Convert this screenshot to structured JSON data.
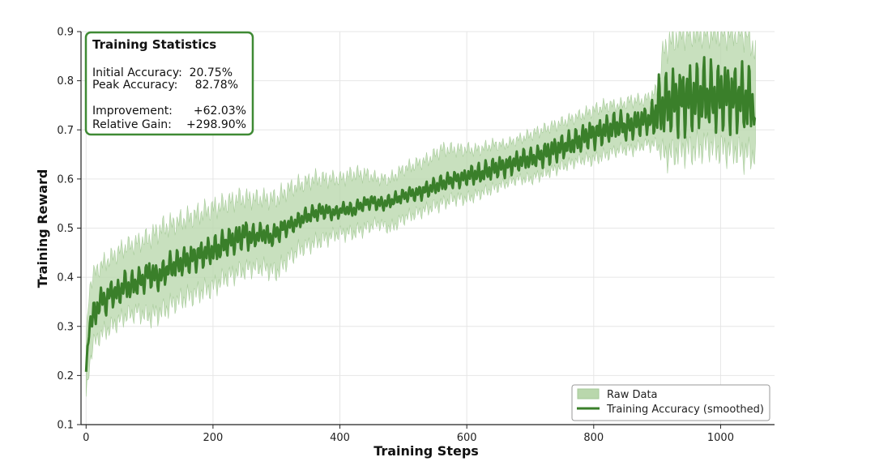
{
  "chart_data": {
    "type": "line",
    "xlabel": "Training Steps",
    "ylabel": "Training Reward",
    "xlim": [
      -8,
      1085
    ],
    "ylim": [
      0.1,
      0.9
    ],
    "xticks": [
      0,
      200,
      400,
      600,
      800,
      1000
    ],
    "yticks": [
      0.1,
      0.2,
      0.3,
      0.4,
      0.5,
      0.6,
      0.7,
      0.8,
      0.9
    ],
    "xtick_labels": [
      "0",
      "200",
      "400",
      "600",
      "800",
      "1000"
    ],
    "ytick_labels": [
      "0.1",
      "0.2",
      "0.3",
      "0.4",
      "0.5",
      "0.6",
      "0.7",
      "0.8",
      "0.9"
    ],
    "grid": true,
    "legend": {
      "position": "bottom-right",
      "entries": [
        "Raw Data",
        "Training Accuracy (smoothed)"
      ]
    },
    "series": [
      {
        "name": "Training Accuracy (smoothed)",
        "color": "#3a7f2a",
        "x": [
          0,
          5,
          10,
          15,
          20,
          30,
          40,
          50,
          60,
          70,
          80,
          90,
          100,
          110,
          120,
          130,
          140,
          150,
          160,
          170,
          180,
          190,
          200,
          210,
          220,
          230,
          240,
          250,
          260,
          270,
          280,
          290,
          300,
          310,
          320,
          330,
          340,
          350,
          360,
          370,
          380,
          390,
          400,
          410,
          420,
          430,
          440,
          450,
          460,
          470,
          480,
          490,
          500,
          510,
          520,
          530,
          540,
          550,
          560,
          570,
          580,
          590,
          600,
          610,
          620,
          630,
          640,
          650,
          660,
          670,
          680,
          690,
          700,
          710,
          720,
          730,
          740,
          750,
          760,
          770,
          780,
          790,
          800,
          810,
          820,
          830,
          840,
          850,
          860,
          870,
          880,
          890,
          900,
          910,
          920,
          930,
          940,
          950,
          960,
          970,
          980,
          990,
          1000,
          1010,
          1020,
          1030,
          1040,
          1050,
          1055
        ],
        "values": [
          0.2075,
          0.3,
          0.33,
          0.315,
          0.355,
          0.35,
          0.37,
          0.365,
          0.385,
          0.38,
          0.39,
          0.395,
          0.41,
          0.4,
          0.405,
          0.42,
          0.425,
          0.43,
          0.435,
          0.44,
          0.445,
          0.45,
          0.455,
          0.46,
          0.47,
          0.475,
          0.48,
          0.49,
          0.48,
          0.485,
          0.49,
          0.48,
          0.49,
          0.5,
          0.505,
          0.51,
          0.52,
          0.525,
          0.53,
          0.535,
          0.535,
          0.53,
          0.535,
          0.54,
          0.535,
          0.545,
          0.55,
          0.555,
          0.55,
          0.55,
          0.555,
          0.56,
          0.565,
          0.57,
          0.57,
          0.575,
          0.58,
          0.585,
          0.59,
          0.595,
          0.6,
          0.6,
          0.605,
          0.61,
          0.61,
          0.615,
          0.62,
          0.625,
          0.625,
          0.63,
          0.635,
          0.64,
          0.64,
          0.645,
          0.65,
          0.655,
          0.66,
          0.665,
          0.67,
          0.675,
          0.68,
          0.69,
          0.69,
          0.695,
          0.7,
          0.705,
          0.71,
          0.705,
          0.71,
          0.715,
          0.72,
          0.72,
          0.74,
          0.75,
          0.755,
          0.76,
          0.76,
          0.765,
          0.765,
          0.77,
          0.77,
          0.765,
          0.77,
          0.77,
          0.765,
          0.765,
          0.76,
          0.755,
          0.725
        ],
        "amplitude": [
          0.0,
          0.02,
          0.02,
          0.02,
          0.02,
          0.02,
          0.02,
          0.02,
          0.02,
          0.02,
          0.02,
          0.02,
          0.02,
          0.02,
          0.02,
          0.02,
          0.02,
          0.02,
          0.02,
          0.02,
          0.02,
          0.02,
          0.02,
          0.02,
          0.02,
          0.02,
          0.02,
          0.02,
          0.02,
          0.015,
          0.015,
          0.015,
          0.015,
          0.015,
          0.012,
          0.012,
          0.012,
          0.012,
          0.012,
          0.012,
          0.01,
          0.01,
          0.01,
          0.01,
          0.01,
          0.01,
          0.01,
          0.01,
          0.01,
          0.01,
          0.01,
          0.01,
          0.01,
          0.01,
          0.01,
          0.012,
          0.012,
          0.012,
          0.012,
          0.012,
          0.012,
          0.012,
          0.012,
          0.015,
          0.015,
          0.015,
          0.015,
          0.015,
          0.015,
          0.015,
          0.015,
          0.015,
          0.015,
          0.015,
          0.018,
          0.018,
          0.018,
          0.018,
          0.018,
          0.018,
          0.018,
          0.02,
          0.02,
          0.02,
          0.02,
          0.02,
          0.02,
          0.02,
          0.02,
          0.02,
          0.02,
          0.02,
          0.045,
          0.045,
          0.045,
          0.05,
          0.05,
          0.05,
          0.05,
          0.05,
          0.05,
          0.05,
          0.05,
          0.05,
          0.05,
          0.05,
          0.05,
          0.05,
          0.0
        ]
      },
      {
        "name": "Raw Data",
        "color": "#b9d7ac",
        "x": [
          0,
          5,
          10,
          20,
          40,
          60,
          80,
          100,
          120,
          140,
          160,
          180,
          200,
          220,
          240,
          260,
          280,
          300,
          320,
          340,
          360,
          380,
          400,
          420,
          440,
          460,
          480,
          500,
          520,
          540,
          560,
          580,
          600,
          620,
          640,
          660,
          680,
          700,
          720,
          740,
          760,
          780,
          800,
          820,
          840,
          860,
          880,
          900,
          910,
          920,
          940,
          960,
          980,
          1000,
          1020,
          1040,
          1055
        ],
        "lower": [
          0.15,
          0.22,
          0.26,
          0.28,
          0.3,
          0.32,
          0.33,
          0.32,
          0.33,
          0.35,
          0.36,
          0.37,
          0.38,
          0.4,
          0.41,
          0.42,
          0.42,
          0.41,
          0.44,
          0.46,
          0.47,
          0.48,
          0.49,
          0.49,
          0.5,
          0.51,
          0.5,
          0.52,
          0.53,
          0.54,
          0.55,
          0.56,
          0.56,
          0.57,
          0.58,
          0.59,
          0.6,
          0.6,
          0.61,
          0.62,
          0.63,
          0.64,
          0.64,
          0.65,
          0.66,
          0.66,
          0.67,
          0.67,
          0.65,
          0.65,
          0.66,
          0.66,
          0.67,
          0.66,
          0.66,
          0.65,
          0.65
        ],
        "upper": [
          0.26,
          0.38,
          0.4,
          0.42,
          0.44,
          0.46,
          0.47,
          0.48,
          0.5,
          0.51,
          0.52,
          0.53,
          0.54,
          0.55,
          0.56,
          0.56,
          0.56,
          0.56,
          0.58,
          0.59,
          0.6,
          0.6,
          0.6,
          0.61,
          0.61,
          0.6,
          0.6,
          0.62,
          0.63,
          0.64,
          0.66,
          0.66,
          0.66,
          0.66,
          0.67,
          0.67,
          0.68,
          0.69,
          0.7,
          0.71,
          0.72,
          0.73,
          0.74,
          0.75,
          0.75,
          0.76,
          0.76,
          0.78,
          0.86,
          0.88,
          0.9,
          0.9,
          0.9,
          0.9,
          0.9,
          0.9,
          0.86
        ]
      }
    ],
    "annotation_box": {
      "title": "Training Statistics",
      "position": "top-left",
      "lines": [
        [
          "Initial Accuracy:",
          "20.75%"
        ],
        [
          "Peak Accuracy:",
          "82.78%"
        ],
        [
          "Improvement:",
          "+62.03%"
        ],
        [
          "Relative Gain:",
          "+298.90%"
        ]
      ],
      "border_color": "#3f8a34"
    },
    "colors": {
      "line": "#3a7f2a",
      "fill": "#b9d7ac",
      "grid": "#e6e6e6",
      "axis": "#222222"
    }
  }
}
